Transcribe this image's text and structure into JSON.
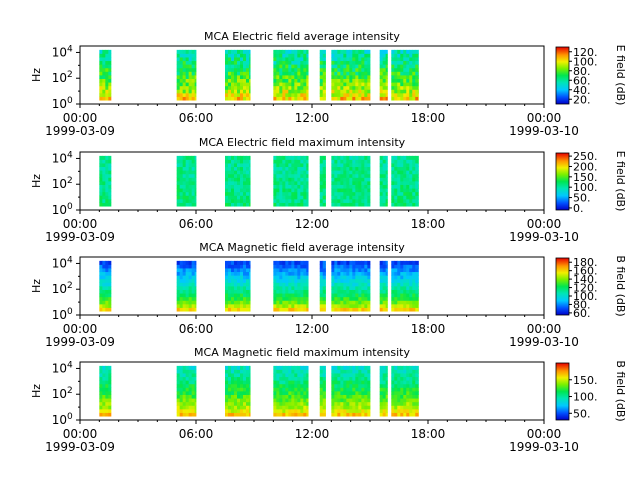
{
  "chart_data": [
    {
      "type": "heatmap",
      "title": "MCA  Electric field average intensity",
      "ylabel": "Hz",
      "colorbar_label": "E field (dB)",
      "colorbar_ticks": [
        "20.",
        "40.",
        "60.",
        "80.",
        "100.",
        "120."
      ],
      "colorbar_range": [
        10,
        130
      ],
      "ylim_log10": [
        0,
        4.5
      ],
      "yticks": [
        {
          "base": "10",
          "exp": "0"
        },
        {
          "base": "10",
          "exp": "2"
        },
        {
          "base": "10",
          "exp": "4"
        }
      ],
      "xlim_hours": [
        0,
        24
      ],
      "xticks": [
        {
          "hour": 0,
          "label": "00:00"
        },
        {
          "hour": 6,
          "label": "06:00"
        },
        {
          "hour": 12,
          "label": "12:00"
        },
        {
          "hour": 18,
          "label": "18:00"
        },
        {
          "hour": 24,
          "label": "00:00"
        }
      ],
      "date_labels": [
        {
          "hour": 0,
          "label": "1999-03-09"
        },
        {
          "hour": 24,
          "label": "1999-03-10"
        }
      ],
      "data_intervals_hours": [
        [
          1.0,
          1.6
        ],
        [
          5.0,
          6.0
        ],
        [
          7.5,
          8.8
        ],
        [
          10.0,
          11.8
        ],
        [
          12.4,
          12.7
        ],
        [
          13.0,
          15.0
        ],
        [
          15.5,
          15.9
        ],
        [
          16.1,
          17.5
        ]
      ],
      "spectrum_db": {
        "low_freq": 105,
        "high_freq": 55,
        "variability": 15
      }
    },
    {
      "type": "heatmap",
      "title": "MCA  Electric field maximum intensity",
      "ylabel": "Hz",
      "colorbar_label": "E field (dB)",
      "colorbar_ticks": [
        "0.",
        "50.",
        "100.",
        "150.",
        "200.",
        "250."
      ],
      "colorbar_range": [
        -10,
        265
      ],
      "ylim_log10": [
        0,
        4.5
      ],
      "yticks": [
        {
          "base": "10",
          "exp": "0"
        },
        {
          "base": "10",
          "exp": "2"
        },
        {
          "base": "10",
          "exp": "4"
        }
      ],
      "xlim_hours": [
        0,
        24
      ],
      "xticks": [
        {
          "hour": 0,
          "label": "00:00"
        },
        {
          "hour": 6,
          "label": "06:00"
        },
        {
          "hour": 12,
          "label": "12:00"
        },
        {
          "hour": 18,
          "label": "18:00"
        },
        {
          "hour": 24,
          "label": "00:00"
        }
      ],
      "date_labels": [
        {
          "hour": 0,
          "label": "1999-03-09"
        },
        {
          "hour": 24,
          "label": "1999-03-10"
        }
      ],
      "data_intervals_hours": [
        [
          1.0,
          1.6
        ],
        [
          5.0,
          6.0
        ],
        [
          7.5,
          8.8
        ],
        [
          10.0,
          11.8
        ],
        [
          12.4,
          12.7
        ],
        [
          13.0,
          15.0
        ],
        [
          15.5,
          15.9
        ],
        [
          16.1,
          17.5
        ]
      ],
      "spectrum_db": {
        "low_freq": 115,
        "high_freq": 105,
        "variability": 20
      }
    },
    {
      "type": "heatmap",
      "title": "MCA  Magnetic field average intensity",
      "ylabel": "Hz",
      "colorbar_label": "B field (dB)",
      "colorbar_ticks": [
        "60.",
        "80.",
        "100.",
        "120.",
        "140.",
        "160.",
        "180."
      ],
      "colorbar_range": [
        55,
        190
      ],
      "ylim_log10": [
        0,
        4.5
      ],
      "yticks": [
        {
          "base": "10",
          "exp": "0"
        },
        {
          "base": "10",
          "exp": "2"
        },
        {
          "base": "10",
          "exp": "4"
        }
      ],
      "xlim_hours": [
        0,
        24
      ],
      "xticks": [
        {
          "hour": 0,
          "label": "00:00"
        },
        {
          "hour": 6,
          "label": "06:00"
        },
        {
          "hour": 12,
          "label": "12:00"
        },
        {
          "hour": 18,
          "label": "18:00"
        },
        {
          "hour": 24,
          "label": "00:00"
        }
      ],
      "date_labels": [
        {
          "hour": 0,
          "label": "1999-03-09"
        },
        {
          "hour": 24,
          "label": "1999-03-10"
        }
      ],
      "data_intervals_hours": [
        [
          1.0,
          1.6
        ],
        [
          5.0,
          6.0
        ],
        [
          7.5,
          8.8
        ],
        [
          10.0,
          11.8
        ],
        [
          12.4,
          12.7
        ],
        [
          13.0,
          15.0
        ],
        [
          15.5,
          15.9
        ],
        [
          16.1,
          17.5
        ]
      ],
      "spectrum_db": {
        "low_freq": 160,
        "high_freq": 70,
        "variability": 8
      }
    },
    {
      "type": "heatmap",
      "title": "MCA  Magnetic field maximum intensity",
      "ylabel": "Hz",
      "colorbar_label": "B field (dB)",
      "colorbar_ticks": [
        "50.",
        "100.",
        "150."
      ],
      "colorbar_range": [
        30,
        200
      ],
      "ylim_log10": [
        0,
        4.5
      ],
      "yticks": [
        {
          "base": "10",
          "exp": "0"
        },
        {
          "base": "10",
          "exp": "2"
        },
        {
          "base": "10",
          "exp": "4"
        }
      ],
      "xlim_hours": [
        0,
        24
      ],
      "xticks": [
        {
          "hour": 0,
          "label": "00:00"
        },
        {
          "hour": 6,
          "label": "06:00"
        },
        {
          "hour": 12,
          "label": "12:00"
        },
        {
          "hour": 18,
          "label": "18:00"
        },
        {
          "hour": 24,
          "label": "00:00"
        }
      ],
      "date_labels": [
        {
          "hour": 0,
          "label": "1999-03-09"
        },
        {
          "hour": 24,
          "label": "1999-03-10"
        }
      ],
      "data_intervals_hours": [
        [
          1.0,
          1.6
        ],
        [
          5.0,
          6.0
        ],
        [
          7.5,
          8.8
        ],
        [
          10.0,
          11.8
        ],
        [
          12.4,
          12.7
        ],
        [
          13.0,
          15.0
        ],
        [
          15.5,
          15.9
        ],
        [
          16.1,
          17.5
        ]
      ],
      "spectrum_db": {
        "low_freq": 165,
        "high_freq": 90,
        "variability": 12
      }
    }
  ]
}
